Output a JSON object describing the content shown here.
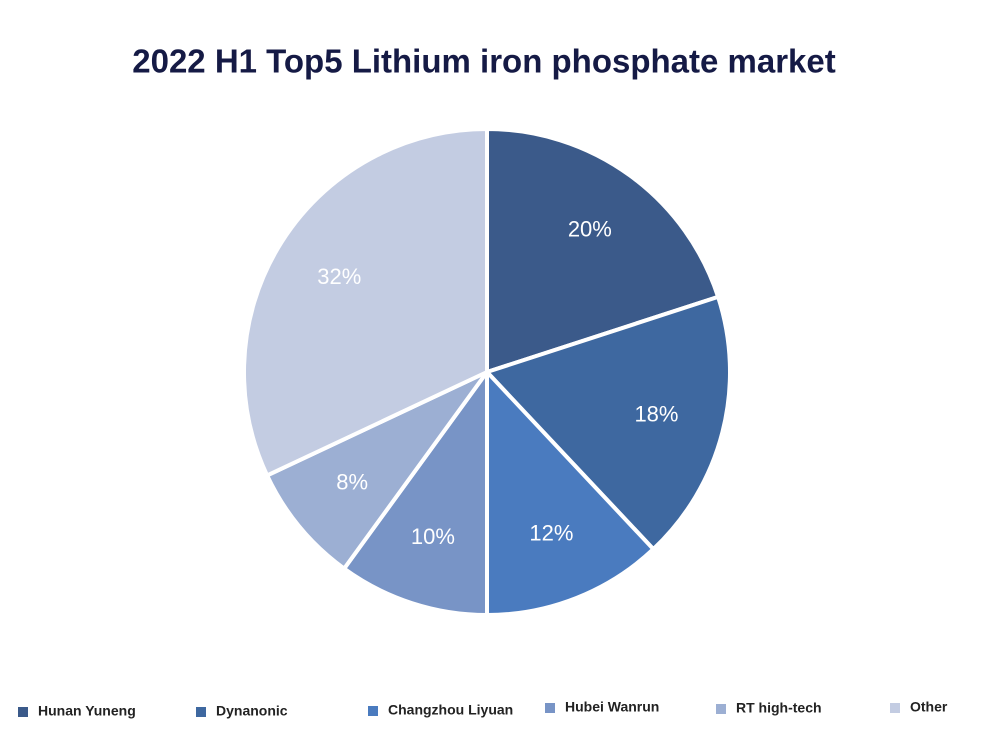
{
  "chart_data": {
    "type": "pie",
    "title": "2022 H1 Top5 Lithium iron phosphate market",
    "categories": [
      "Hunan Yuneng",
      "Dynanonic",
      "Changzhou Liyuan",
      "Hubei Wanrun",
      "RT high-tech",
      "Other"
    ],
    "values": [
      20,
      18,
      12,
      10,
      8,
      32
    ],
    "value_labels": [
      "20%",
      "18%",
      "12%",
      "10%",
      "8%",
      "32%"
    ],
    "colors": [
      "#3b5a8a",
      "#3e68a0",
      "#4a7bbf",
      "#7894c6",
      "#9cafd3",
      "#c3cce2"
    ],
    "legend": "bottom"
  }
}
